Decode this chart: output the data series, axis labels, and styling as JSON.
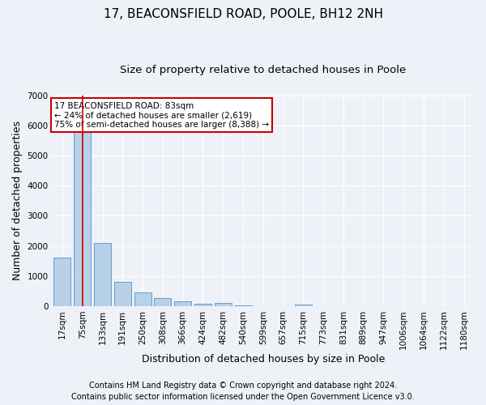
{
  "title1": "17, BEACONSFIELD ROAD, POOLE, BH12 2NH",
  "title2": "Size of property relative to detached houses in Poole",
  "xlabel": "Distribution of detached houses by size in Poole",
  "ylabel": "Number of detached properties",
  "categories": [
    "17sqm",
    "75sqm",
    "133sqm",
    "191sqm",
    "250sqm",
    "308sqm",
    "366sqm",
    "424sqm",
    "482sqm",
    "540sqm",
    "599sqm",
    "657sqm",
    "715sqm",
    "773sqm",
    "831sqm",
    "889sqm",
    "947sqm",
    "1006sqm",
    "1064sqm",
    "1122sqm",
    "1180sqm"
  ],
  "values": [
    1620,
    5900,
    2100,
    800,
    450,
    255,
    145,
    80,
    100,
    30,
    5,
    0,
    50,
    0,
    0,
    0,
    0,
    0,
    0,
    0,
    0
  ],
  "bar_color": "#b8d0e8",
  "bar_edge_color": "#6699cc",
  "vline_x_index": 1,
  "vline_color": "#cc0000",
  "annotation_line1": "17 BEACONSFIELD ROAD: 83sqm",
  "annotation_line2": "← 24% of detached houses are smaller (2,619)",
  "annotation_line3": "75% of semi-detached houses are larger (8,388) →",
  "annotation_box_color": "#cc0000",
  "ylim": [
    0,
    7000
  ],
  "yticks": [
    0,
    1000,
    2000,
    3000,
    4000,
    5000,
    6000,
    7000
  ],
  "footer1": "Contains HM Land Registry data © Crown copyright and database right 2024.",
  "footer2": "Contains public sector information licensed under the Open Government Licence v3.0.",
  "bg_color": "#eef2f8",
  "plot_bg_color": "#eef2f8",
  "grid_color": "#ffffff",
  "title1_fontsize": 11,
  "title2_fontsize": 9.5,
  "tick_fontsize": 7.5,
  "label_fontsize": 9,
  "footer_fontsize": 7,
  "annotation_fontsize": 7.5
}
